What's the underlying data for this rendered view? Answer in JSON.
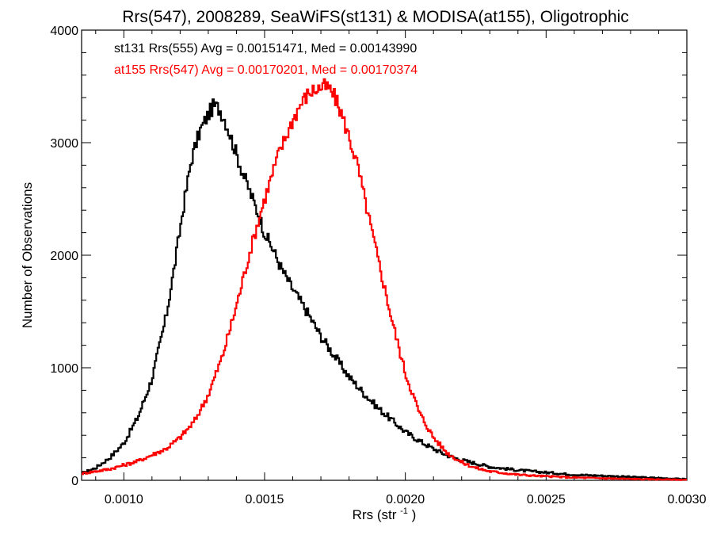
{
  "chart_data": {
    "type": "line",
    "title": "Rrs(547), 2008289, SeaWiFS(st131) & MODISA(at155), Oligotrophic",
    "xlabel": "Rrs (str",
    "xlabel_sup": "-1",
    "xlabel_end": ")",
    "ylabel": "Number of Observations",
    "xlim": [
      0.00085,
      0.003
    ],
    "ylim": [
      0,
      4000
    ],
    "xticks": [
      0.001,
      0.0015,
      0.002,
      0.0025,
      0.003
    ],
    "xtick_labels": [
      "0.0010",
      "0.0015",
      "0.0020",
      "0.0025",
      "0.0030"
    ],
    "yticks": [
      0,
      1000,
      2000,
      3000,
      4000
    ],
    "ytick_labels": [
      "0",
      "1000",
      "2000",
      "3000",
      "4000"
    ],
    "grid": false,
    "legend_placement": "top-left",
    "annotations": [
      {
        "text": "st131 Rrs(555) Avg = 0.00151471, Med = 0.00143990",
        "color": "#000000"
      },
      {
        "text": "at155 Rrs(547) Avg = 0.00170201, Med = 0.00170374",
        "color": "#ff0000"
      }
    ],
    "series": [
      {
        "color": "#000000",
        "x": [
          0.00085,
          0.0009,
          0.00095,
          0.001,
          0.00105,
          0.0011,
          0.00115,
          0.00118,
          0.00121,
          0.00124,
          0.00127,
          0.0013,
          0.00132,
          0.00134,
          0.00136,
          0.00138,
          0.0014,
          0.00142,
          0.00145,
          0.00148,
          0.0015,
          0.00153,
          0.00156,
          0.0016,
          0.00165,
          0.0017,
          0.00175,
          0.0018,
          0.00185,
          0.0019,
          0.00195,
          0.002,
          0.00205,
          0.0021,
          0.00215,
          0.0022,
          0.00225,
          0.0023,
          0.0024,
          0.0025,
          0.0026,
          0.0027,
          0.0028,
          0.0029,
          0.003
        ],
        "y": [
          60,
          110,
          200,
          330,
          560,
          900,
          1450,
          1900,
          2400,
          2850,
          3100,
          3250,
          3330,
          3300,
          3200,
          3050,
          2900,
          2750,
          2550,
          2350,
          2200,
          2050,
          1880,
          1700,
          1500,
          1280,
          1100,
          920,
          780,
          650,
          540,
          430,
          350,
          280,
          220,
          180,
          150,
          120,
          90,
          70,
          50,
          40,
          30,
          20,
          10
        ]
      },
      {
        "color": "#ff0000",
        "x": [
          0.00085,
          0.00095,
          0.00105,
          0.00115,
          0.0012,
          0.00125,
          0.0013,
          0.00135,
          0.0014,
          0.00145,
          0.0015,
          0.00155,
          0.0016,
          0.00163,
          0.00166,
          0.00169,
          0.00171,
          0.00173,
          0.00175,
          0.00177,
          0.0018,
          0.00183,
          0.00186,
          0.0019,
          0.00195,
          0.002,
          0.00205,
          0.0021,
          0.00215,
          0.0022,
          0.00225,
          0.0023,
          0.0024,
          0.0025,
          0.0026,
          0.0027,
          0.0028,
          0.0029,
          0.003
        ],
        "y": [
          60,
          100,
          170,
          280,
          380,
          520,
          760,
          1100,
          1550,
          2050,
          2500,
          2900,
          3200,
          3350,
          3450,
          3480,
          3500,
          3480,
          3400,
          3280,
          3050,
          2800,
          2450,
          2000,
          1450,
          950,
          600,
          380,
          240,
          160,
          110,
          80,
          50,
          35,
          25,
          18,
          12,
          8,
          5
        ]
      }
    ]
  }
}
